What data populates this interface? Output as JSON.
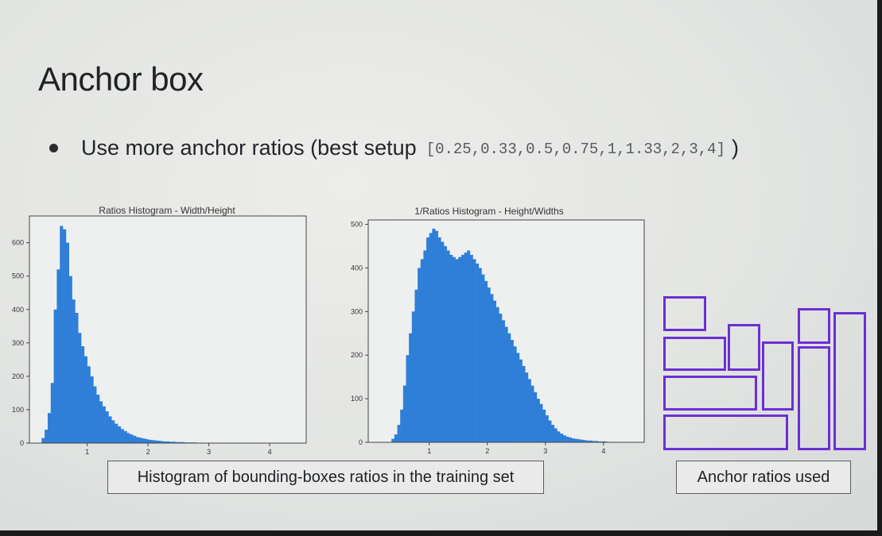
{
  "slide": {
    "title": "Anchor box",
    "bullet": {
      "text": "Use more anchor ratios (best setup",
      "code": "[0.25,0.33,0.5,0.75,1,1.33,2,3,4]",
      "close": ")"
    },
    "caption_histograms": "Histogram of bounding-boxes ratios in the training set",
    "caption_anchors": "Anchor ratios used",
    "anchor_color": "#6c2fd4",
    "bar_color": "#2f7fd8"
  },
  "chart_data": [
    {
      "type": "bar",
      "title": "Ratios Histogram - Width/Height",
      "xlabel": "",
      "ylabel": "",
      "xlim": [
        0.05,
        4.6
      ],
      "ylim": [
        0,
        680
      ],
      "xticks": [
        1,
        2,
        3,
        4
      ],
      "yticks": [
        0,
        100,
        200,
        300,
        400,
        500,
        600
      ],
      "bin_start": 0.25,
      "bin_width": 0.05,
      "values": [
        15,
        40,
        90,
        180,
        400,
        520,
        650,
        640,
        600,
        500,
        430,
        390,
        330,
        290,
        260,
        230,
        200,
        170,
        145,
        125,
        110,
        95,
        80,
        68,
        58,
        50,
        42,
        36,
        30,
        26,
        22,
        18,
        16,
        14,
        12,
        10,
        9,
        8,
        7,
        6,
        5,
        5,
        4,
        4,
        3,
        3,
        3,
        2,
        2,
        2,
        2,
        1,
        1,
        1,
        1,
        1,
        1
      ]
    },
    {
      "type": "bar",
      "title": "1/Ratios Histogram - Height/Widths",
      "xlabel": "",
      "ylabel": "",
      "xlim": [
        -0.05,
        4.7
      ],
      "ylim": [
        0,
        510
      ],
      "xticks": [
        1,
        2,
        3,
        4
      ],
      "yticks": [
        0,
        100,
        200,
        300,
        400,
        500
      ],
      "bin_start": 0.35,
      "bin_width": 0.05,
      "values": [
        8,
        18,
        40,
        75,
        130,
        200,
        250,
        300,
        350,
        400,
        420,
        440,
        470,
        480,
        490,
        485,
        470,
        460,
        450,
        440,
        430,
        425,
        420,
        425,
        430,
        435,
        440,
        430,
        420,
        410,
        400,
        385,
        370,
        355,
        340,
        325,
        310,
        295,
        280,
        265,
        250,
        235,
        220,
        205,
        190,
        175,
        160,
        145,
        130,
        115,
        100,
        88,
        75,
        62,
        50,
        40,
        32,
        25,
        20,
        16,
        13,
        11,
        9,
        8,
        7,
        6,
        5,
        4,
        4,
        3,
        3,
        2,
        2,
        2,
        1
      ]
    }
  ]
}
